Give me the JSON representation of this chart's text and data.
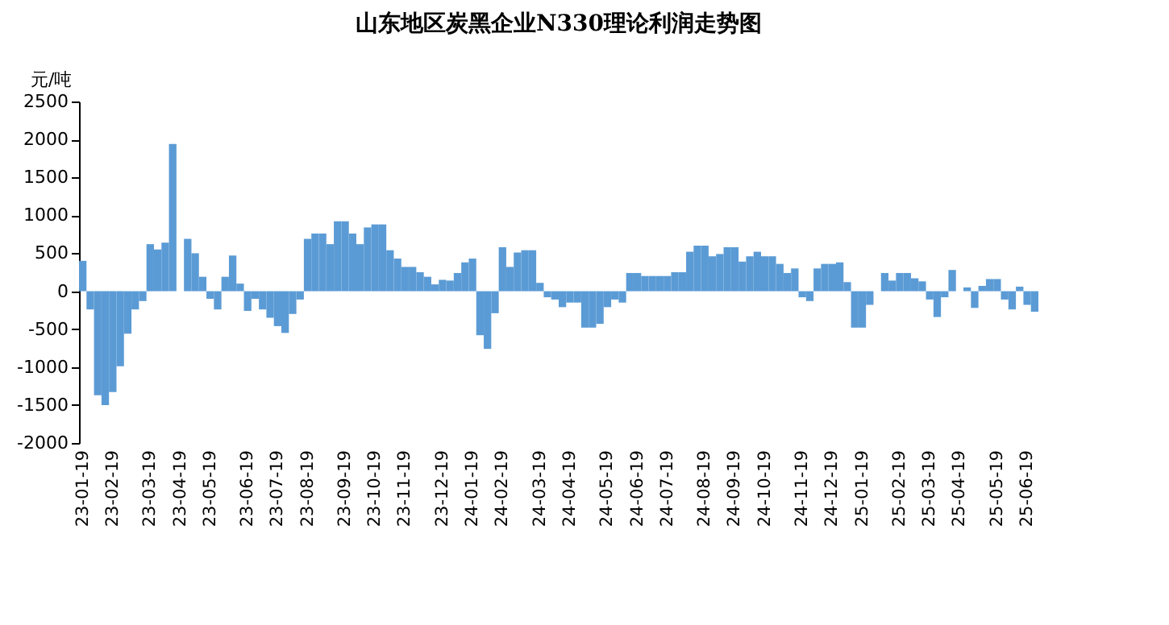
{
  "chart_data": {
    "type": "bar",
    "title": "山东地区炭黑企业N330理论利润走势图",
    "ylabel": "元/吨",
    "categories": [
      "23-01-19",
      null,
      null,
      null,
      "23-02-19",
      null,
      null,
      null,
      null,
      "23-03-19",
      null,
      null,
      null,
      "23-04-19",
      null,
      null,
      null,
      "23-05-19",
      null,
      null,
      null,
      null,
      "23-06-19",
      null,
      null,
      null,
      "23-07-19",
      null,
      null,
      null,
      "23-08-19",
      null,
      null,
      null,
      null,
      "23-09-19",
      null,
      null,
      null,
      "23-10-19",
      null,
      null,
      null,
      "23-11-19",
      null,
      null,
      null,
      null,
      "23-12-19",
      null,
      null,
      null,
      "24-01-19",
      null,
      null,
      null,
      "24-02-19",
      null,
      null,
      null,
      null,
      "24-03-19",
      null,
      null,
      null,
      "24-04-19",
      null,
      null,
      null,
      null,
      "24-05-19",
      null,
      null,
      null,
      "24-06-19",
      null,
      null,
      null,
      "24-07-19",
      null,
      null,
      null,
      null,
      "24-08-19",
      null,
      null,
      null,
      "24-09-19",
      null,
      null,
      null,
      "24-10-19",
      null,
      null,
      null,
      null,
      "24-11-19",
      null,
      null,
      null,
      "24-12-19",
      null,
      null,
      null,
      "25-01-19",
      null,
      null,
      null,
      null,
      "25-02-19",
      null,
      null,
      null,
      "25-03-19",
      null,
      null,
      null,
      "25-04-19",
      null,
      null,
      null,
      null,
      "25-05-19",
      null,
      null,
      null,
      "25-06-19",
      null
    ],
    "values": [
      400,
      -240,
      -1370,
      -1500,
      -1330,
      -990,
      -560,
      -240,
      -130,
      620,
      550,
      640,
      1940,
      0,
      690,
      500,
      190,
      -100,
      -240,
      190,
      470,
      100,
      -260,
      -100,
      -240,
      -350,
      -460,
      -550,
      -300,
      -110,
      690,
      760,
      760,
      620,
      920,
      920,
      760,
      620,
      840,
      880,
      880,
      540,
      430,
      320,
      320,
      250,
      190,
      90,
      150,
      140,
      240,
      380,
      430,
      -580,
      -760,
      -290,
      580,
      320,
      510,
      540,
      540,
      110,
      -80,
      -110,
      -210,
      -150,
      -150,
      -480,
      -480,
      -430,
      -210,
      -110,
      -150,
      240,
      240,
      200,
      200,
      200,
      200,
      250,
      250,
      520,
      600,
      600,
      460,
      490,
      580,
      580,
      390,
      460,
      520,
      460,
      460,
      360,
      240,
      300,
      -80,
      -130,
      300,
      360,
      360,
      380,
      120,
      -480,
      -480,
      -180,
      0,
      240,
      140,
      240,
      240,
      170,
      130,
      -110,
      -340,
      -80,
      280,
      0,
      50,
      -220,
      70,
      160,
      160,
      -110,
      -240,
      60,
      -180,
      -270
    ],
    "color": "#5b9bd5",
    "ylim": [
      -2000,
      2500
    ],
    "yticks": [
      -2000,
      -1500,
      -1000,
      -500,
      0,
      500,
      1000,
      1500,
      2000,
      2500
    ],
    "grid": false
  }
}
